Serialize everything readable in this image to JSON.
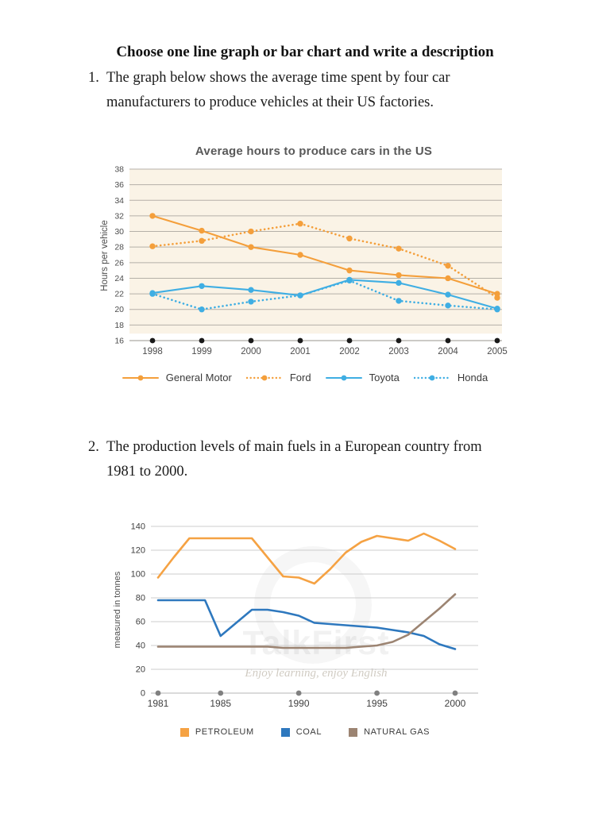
{
  "page": {
    "heading": "Choose one line graph or bar chart and write a description",
    "item1_number": "1.",
    "item1_text": "The graph below shows the average time spent by four car manufacturers to produce vehicles at their US factories.",
    "item2_number": "2.",
    "item2_text": "The production levels of main fuels in a European country from 1981 to 2000."
  },
  "watermark": {
    "brand": "TalkFirst",
    "tagline": "Enjoy learning, enjoy English"
  },
  "colors": {
    "chart1_orange": "#F49F3B",
    "chart1_blue": "#3FAEE3",
    "chart1_background": "#FAF3E6",
    "chart1_gridline": "#B5B0A8",
    "chart1_axis_dot": "#1A1A1A",
    "chart2_petroleum": "#F5A243",
    "chart2_coal": "#2E78BE",
    "chart2_natural_gas": "#9C8472",
    "chart2_gridline": "#CCCCCC",
    "chart2_axis_dot": "#808080",
    "axis_text": "#4D4D4D",
    "chart_title": "#595959"
  },
  "chart_data": [
    {
      "type": "line",
      "title": "Average hours to produce cars in the US",
      "xlabel": "",
      "ylabel": "Hours per vehicle",
      "categories": [
        1998,
        1999,
        2000,
        2001,
        2002,
        2003,
        2004,
        2005
      ],
      "ylim": [
        16,
        38
      ],
      "ytick_step": 2,
      "grid": true,
      "legend_position": "bottom",
      "series": [
        {
          "name": "General Motor",
          "style": "solid",
          "color": "#F49F3B",
          "values": [
            32,
            30.1,
            28,
            27,
            25,
            24.4,
            24,
            22
          ]
        },
        {
          "name": "Ford",
          "style": "dotted",
          "color": "#F49F3B",
          "values": [
            28.1,
            28.8,
            30,
            31,
            29.1,
            27.8,
            25.6,
            21.5
          ]
        },
        {
          "name": "Toyota",
          "style": "solid",
          "color": "#3FAEE3",
          "values": [
            22.1,
            23,
            22.5,
            21.8,
            23.8,
            23.4,
            21.9,
            20.1
          ]
        },
        {
          "name": "Honda",
          "style": "dotted",
          "color": "#3FAEE3",
          "values": [
            22,
            20,
            21,
            21.8,
            23.7,
            21.1,
            20.5,
            20
          ]
        }
      ]
    },
    {
      "type": "line",
      "title": "",
      "xlabel": "",
      "ylabel": "measured in tonnes",
      "x": [
        1981,
        1982,
        1983,
        1984,
        1985,
        1986,
        1987,
        1988,
        1989,
        1990,
        1991,
        1992,
        1993,
        1994,
        1995,
        1996,
        1997,
        1998,
        1999,
        2000
      ],
      "xticks": [
        1981,
        1985,
        1990,
        1995,
        2000
      ],
      "ylim": [
        0,
        140
      ],
      "ytick_step": 20,
      "grid": true,
      "legend_position": "bottom",
      "series": [
        {
          "name": "PETROLEUM",
          "style": "solid",
          "color": "#F5A243",
          "values": [
            97,
            114,
            130,
            130,
            130,
            130,
            130,
            114,
            98,
            97,
            92,
            104,
            118,
            127,
            132,
            130,
            128,
            134,
            128,
            121
          ]
        },
        {
          "name": "COAL",
          "style": "solid",
          "color": "#2E78BE",
          "values": [
            78,
            78,
            78,
            78,
            48,
            59,
            70,
            70,
            68,
            65,
            59,
            58,
            57,
            56,
            55,
            53,
            51,
            48,
            41,
            37
          ]
        },
        {
          "name": "NATURAL GAS",
          "style": "solid",
          "color": "#9C8472",
          "values": [
            39,
            39,
            39,
            39,
            39,
            39,
            39,
            39,
            38,
            38,
            38,
            38,
            38,
            39,
            40,
            43,
            49,
            60,
            71,
            83
          ]
        }
      ]
    }
  ]
}
